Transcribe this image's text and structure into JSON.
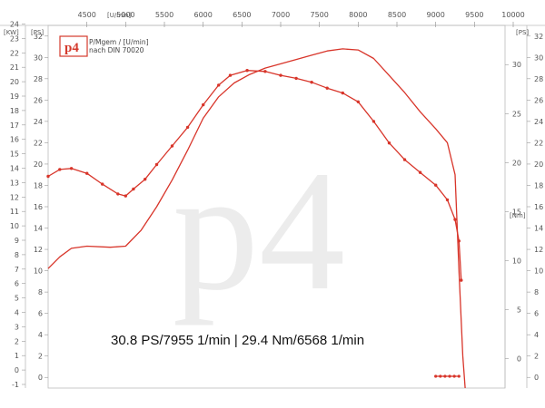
{
  "chart_data": {
    "type": "line",
    "title": "",
    "caption_line1": "P/Mgem / [U/min]",
    "caption_line2": "nach DIN 70020",
    "logo_text": "p4",
    "watermark_text": "p4",
    "summary": "30.8 PS/7955 1/min | 29.4 Nm/6568 1/min",
    "x_unit": "[U/min]",
    "x_ticks": [
      "4500",
      "5000",
      "5500",
      "6000",
      "6500",
      "7000",
      "7500",
      "8000",
      "8500",
      "9000",
      "9500",
      "10000"
    ],
    "xlim": [
      4000,
      10000
    ],
    "left_axis_kw": {
      "unit": "[KW]",
      "ticks": [
        "24",
        "23",
        "22",
        "21",
        "20",
        "19",
        "18",
        "17",
        "16",
        "15",
        "14",
        "13",
        "12",
        "11",
        "10",
        "9",
        "8",
        "7",
        "6",
        "5",
        "4",
        "3",
        "2",
        "1",
        "0",
        "-1"
      ]
    },
    "left_axis_ps": {
      "unit": "[PS]",
      "ticks": [
        "32",
        "30",
        "28",
        "26",
        "24",
        "22",
        "20",
        "18",
        "16",
        "14",
        "12",
        "10",
        "8",
        "6",
        "4",
        "2",
        "0"
      ],
      "ylim": [
        -1,
        33
      ]
    },
    "right_axis_ps": {
      "unit": "[PS]",
      "ticks": [
        "32",
        "30",
        "28",
        "26",
        "24",
        "22",
        "20",
        "18",
        "16",
        "14",
        "12",
        "10",
        "8",
        "6",
        "4",
        "2",
        "0"
      ]
    },
    "right_axis_nm": {
      "unit": "[Nm]",
      "ticks": [
        "30",
        "25",
        "20",
        "15",
        "10",
        "5",
        "0"
      ],
      "ylim": [
        -3,
        34
      ]
    },
    "colors": {
      "power": "#d8352a",
      "torque": "#d8352a",
      "background": "#ffffff"
    },
    "series": [
      {
        "name": "",
        "axis": "ps",
        "x": [
          4000,
          4150,
          4300,
          4500,
          4800,
          5000,
          5200,
          5400,
          5600,
          5800,
          6000,
          6200,
          6400,
          6600,
          6800,
          7000,
          7200,
          7400,
          7600,
          7800,
          8000,
          8200,
          8400,
          8600,
          8800,
          9000,
          9150,
          9250,
          9300,
          9350,
          9380
        ],
        "values": [
          10.2,
          11.3,
          12.1,
          12.3,
          12.2,
          12.3,
          13.8,
          16.0,
          18.5,
          21.3,
          24.3,
          26.3,
          27.6,
          28.4,
          29.0,
          29.4,
          29.8,
          30.2,
          30.6,
          30.8,
          30.7,
          29.9,
          28.3,
          26.7,
          24.9,
          23.3,
          22.0,
          19.0,
          10.0,
          2.0,
          -1.0
        ]
      },
      {
        "name": "",
        "axis": "nm",
        "x": [
          4000,
          4150,
          4300,
          4500,
          4700,
          4900,
          5000,
          5100,
          5250,
          5400,
          5600,
          5800,
          6000,
          6200,
          6350,
          6568,
          6800,
          7000,
          7200,
          7400,
          7600,
          7800,
          8000,
          8200,
          8400,
          8600,
          8800,
          9000,
          9150,
          9250,
          9300,
          9330
        ],
        "values": [
          18.6,
          19.3,
          19.4,
          18.9,
          17.8,
          16.8,
          16.6,
          17.3,
          18.3,
          19.8,
          21.7,
          23.6,
          25.9,
          27.9,
          28.9,
          29.4,
          29.3,
          28.9,
          28.6,
          28.2,
          27.6,
          27.1,
          26.2,
          24.2,
          22.0,
          20.3,
          19.0,
          17.7,
          16.2,
          14.2,
          12.0,
          8.0
        ]
      }
    ],
    "zero_line": {
      "x": [
        9000,
        9300
      ],
      "value": -1.8,
      "axis": "nm"
    }
  }
}
